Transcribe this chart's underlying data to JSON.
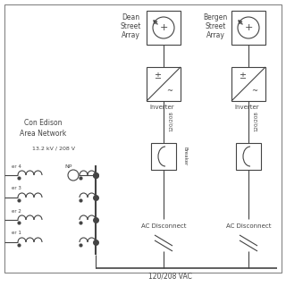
{
  "bg": "white",
  "lc": "#444444",
  "gray": "#aaaaaa",
  "labels": {
    "con_edison_1": "Con Edison",
    "con_edison_2": "Area Network",
    "voltage": "13.2 kV / 208 V",
    "np": "NP",
    "tr": [
      "er 4",
      "er 3",
      "er 2",
      "er 1"
    ],
    "dean": [
      "Dean",
      "Street",
      "Array"
    ],
    "bergen": [
      "Bergen",
      "Street",
      "Array"
    ],
    "inverter": "Inverter",
    "breaker": "Breaker",
    "ac_disconnect": "AC Disconnect",
    "v120": "120/208",
    "bottom": "120/208 VAC"
  },
  "figsize": [
    3.2,
    3.2
  ],
  "dpi": 100
}
